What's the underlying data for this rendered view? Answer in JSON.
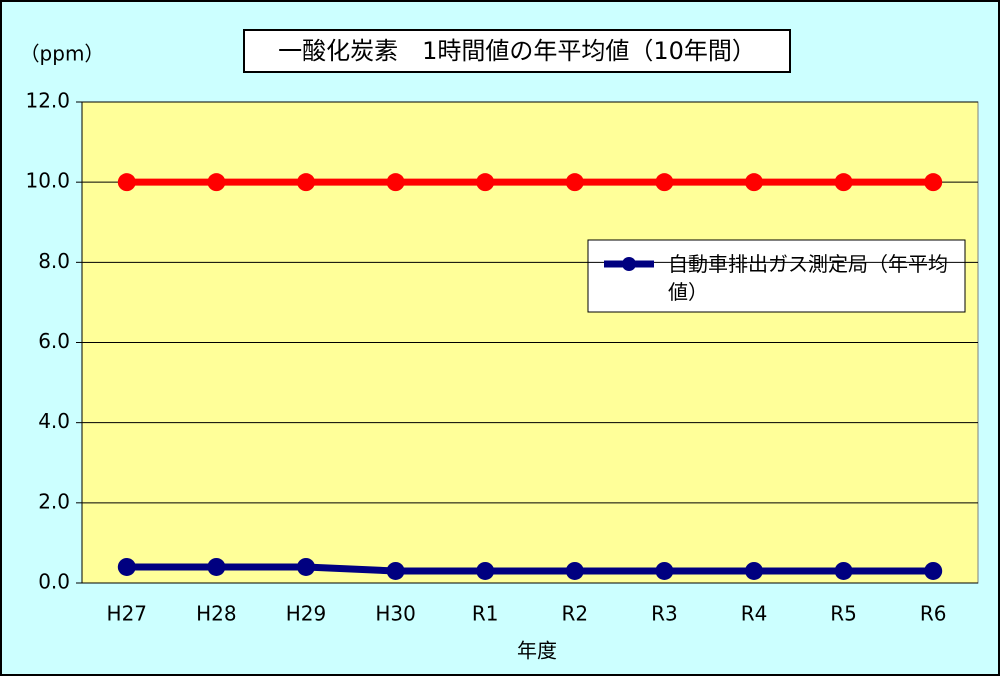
{
  "chart_data": {
    "type": "line",
    "title": "一酸化炭素　1時間値の年平均値（10年間）",
    "y_unit": "（ppm）",
    "x_label": "年度",
    "categories": [
      "H27",
      "H28",
      "H29",
      "H30",
      "R1",
      "R2",
      "R3",
      "R4",
      "R5",
      "R6"
    ],
    "series": [
      {
        "name": "自動車排出ガス測定局（年平均値）",
        "color": "#000080",
        "values": [
          0.4,
          0.4,
          0.4,
          0.3,
          0.3,
          0.3,
          0.3,
          0.3,
          0.3,
          0.3
        ]
      },
      {
        "color": "#ff0000",
        "values": [
          10,
          10,
          10,
          10,
          10,
          10,
          10,
          10,
          10,
          10
        ]
      }
    ],
    "ylim": [
      0,
      12
    ],
    "yticks": [
      {
        "value": 0,
        "label": "0.0"
      },
      {
        "value": 2,
        "label": "2.0"
      },
      {
        "value": 4,
        "label": "4.0"
      },
      {
        "value": 6,
        "label": "6.0"
      },
      {
        "value": 8,
        "label": "8.0"
      },
      {
        "value": 10,
        "label": "10.0"
      },
      {
        "value": 12,
        "label": "12.0"
      }
    ],
    "grid": true,
    "legend": "right"
  }
}
